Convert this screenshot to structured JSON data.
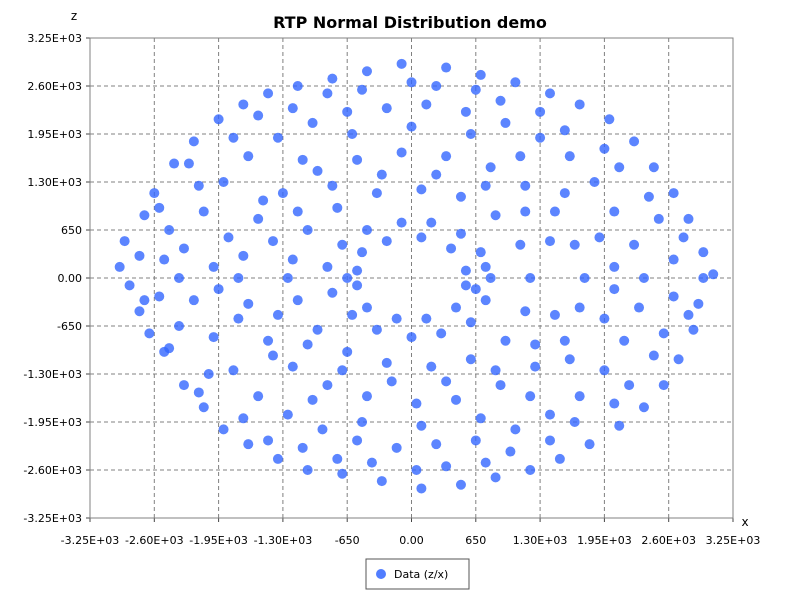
{
  "chart_data": {
    "type": "scatter",
    "title": "RTP Normal Distribution demo",
    "xlabel": "x",
    "ylabel": "z",
    "xlim": [
      -3250,
      3250
    ],
    "ylim": [
      -3250,
      3250
    ],
    "grid": true,
    "legend_position": "bottom-center",
    "x_ticks": [
      {
        "value": -3250,
        "label": "-3.25E+03"
      },
      {
        "value": -2600,
        "label": "-2.60E+03"
      },
      {
        "value": -1950,
        "label": "-1.95E+03"
      },
      {
        "value": -1300,
        "label": "-1.30E+03"
      },
      {
        "value": -650,
        "label": "-650"
      },
      {
        "value": 0,
        "label": "0.00"
      },
      {
        "value": 650,
        "label": "650"
      },
      {
        "value": 1300,
        "label": "1.30E+03"
      },
      {
        "value": 1950,
        "label": "1.95E+03"
      },
      {
        "value": 2600,
        "label": "2.60E+03"
      },
      {
        "value": 3250,
        "label": "3.25E+03"
      }
    ],
    "y_ticks": [
      {
        "value": 3250,
        "label": "3.25E+03"
      },
      {
        "value": 2600,
        "label": "2.60E+03"
      },
      {
        "value": 1950,
        "label": "1.95E+03"
      },
      {
        "value": 1300,
        "label": "1.30E+03"
      },
      {
        "value": 650,
        "label": "650"
      },
      {
        "value": 0,
        "label": "0.00"
      },
      {
        "value": -650,
        "label": "-650"
      },
      {
        "value": -1300,
        "label": "-1.30E+03"
      },
      {
        "value": -1950,
        "label": "-1.95E+03"
      },
      {
        "value": -2600,
        "label": "-2.60E+03"
      },
      {
        "value": -3250,
        "label": "-3.25E+03"
      }
    ],
    "series": [
      {
        "name": "Data (z/x)",
        "color": "#3366ff",
        "marker": "circle",
        "points": [
          {
            "x": -2900,
            "y": 500
          },
          {
            "x": -2950,
            "y": 150
          },
          {
            "x": -2850,
            "y": -100
          },
          {
            "x": -2750,
            "y": -450
          },
          {
            "x": -2700,
            "y": 850
          },
          {
            "x": -2600,
            "y": 1150
          },
          {
            "x": -2650,
            "y": -750
          },
          {
            "x": -2500,
            "y": -1000
          },
          {
            "x": -2400,
            "y": 1550
          },
          {
            "x": -2300,
            "y": -1450
          },
          {
            "x": -2200,
            "y": 1850
          },
          {
            "x": -2100,
            "y": -1750
          },
          {
            "x": -1950,
            "y": 2150
          },
          {
            "x": -1900,
            "y": -2050
          },
          {
            "x": -1700,
            "y": 2350
          },
          {
            "x": -1650,
            "y": -2250
          },
          {
            "x": -1450,
            "y": 2500
          },
          {
            "x": -1350,
            "y": -2450
          },
          {
            "x": -1150,
            "y": 2600
          },
          {
            "x": -1050,
            "y": -2600
          },
          {
            "x": -800,
            "y": 2700
          },
          {
            "x": -700,
            "y": -2650
          },
          {
            "x": -450,
            "y": 2800
          },
          {
            "x": -300,
            "y": -2750
          },
          {
            "x": -100,
            "y": 2900
          },
          {
            "x": 100,
            "y": -2850
          },
          {
            "x": 350,
            "y": 2850
          },
          {
            "x": 500,
            "y": -2800
          },
          {
            "x": 700,
            "y": 2750
          },
          {
            "x": 850,
            "y": -2700
          },
          {
            "x": 1050,
            "y": 2650
          },
          {
            "x": 1200,
            "y": -2600
          },
          {
            "x": 1400,
            "y": 2500
          },
          {
            "x": 1500,
            "y": -2450
          },
          {
            "x": 1700,
            "y": 2350
          },
          {
            "x": 1800,
            "y": -2250
          },
          {
            "x": 2000,
            "y": 2150
          },
          {
            "x": 2100,
            "y": -2000
          },
          {
            "x": 2250,
            "y": 1850
          },
          {
            "x": 2350,
            "y": -1750
          },
          {
            "x": 2450,
            "y": 1500
          },
          {
            "x": 2550,
            "y": -1450
          },
          {
            "x": 2650,
            "y": 1150
          },
          {
            "x": 2700,
            "y": -1100
          },
          {
            "x": 2800,
            "y": 800
          },
          {
            "x": 2850,
            "y": -700
          },
          {
            "x": 2950,
            "y": 350
          },
          {
            "x": 2950,
            "y": 0
          },
          {
            "x": 2900,
            "y": -350
          },
          {
            "x": 3050,
            "y": 50
          },
          {
            "x": -2300,
            "y": 400
          },
          {
            "x": -2200,
            "y": -300
          },
          {
            "x": -2100,
            "y": 900
          },
          {
            "x": -2000,
            "y": -800
          },
          {
            "x": -1900,
            "y": 1300
          },
          {
            "x": -1800,
            "y": -1250
          },
          {
            "x": -1650,
            "y": 1650
          },
          {
            "x": -1550,
            "y": -1600
          },
          {
            "x": -1350,
            "y": 1900
          },
          {
            "x": -1250,
            "y": -1850
          },
          {
            "x": -1000,
            "y": 2100
          },
          {
            "x": -900,
            "y": -2050
          },
          {
            "x": -650,
            "y": 2250
          },
          {
            "x": -550,
            "y": -2200
          },
          {
            "x": -250,
            "y": 2300
          },
          {
            "x": -150,
            "y": -2300
          },
          {
            "x": 150,
            "y": 2350
          },
          {
            "x": 250,
            "y": -2250
          },
          {
            "x": 550,
            "y": 2250
          },
          {
            "x": 650,
            "y": -2200
          },
          {
            "x": 950,
            "y": 2100
          },
          {
            "x": 1050,
            "y": -2050
          },
          {
            "x": 1300,
            "y": 1900
          },
          {
            "x": 1400,
            "y": -1850
          },
          {
            "x": 1600,
            "y": 1650
          },
          {
            "x": 1700,
            "y": -1600
          },
          {
            "x": 1850,
            "y": 1300
          },
          {
            "x": 1950,
            "y": -1250
          },
          {
            "x": 2050,
            "y": 900
          },
          {
            "x": 2150,
            "y": -850
          },
          {
            "x": 2250,
            "y": 450
          },
          {
            "x": 2300,
            "y": -400
          },
          {
            "x": 2350,
            "y": 0
          },
          {
            "x": -2350,
            "y": 0
          },
          {
            "x": -1700,
            "y": 300
          },
          {
            "x": -1650,
            "y": -350
          },
          {
            "x": -1550,
            "y": 800
          },
          {
            "x": -1450,
            "y": -850
          },
          {
            "x": -1300,
            "y": 1150
          },
          {
            "x": -1200,
            "y": -1200
          },
          {
            "x": -950,
            "y": 1450
          },
          {
            "x": -850,
            "y": -1450
          },
          {
            "x": -550,
            "y": 1600
          },
          {
            "x": -450,
            "y": -1600
          },
          {
            "x": -100,
            "y": 1700
          },
          {
            "x": 50,
            "y": -1700
          },
          {
            "x": 350,
            "y": 1650
          },
          {
            "x": 450,
            "y": -1650
          },
          {
            "x": 800,
            "y": 1500
          },
          {
            "x": 900,
            "y": -1450
          },
          {
            "x": 1150,
            "y": 1250
          },
          {
            "x": 1250,
            "y": -1200
          },
          {
            "x": 1450,
            "y": 900
          },
          {
            "x": 1550,
            "y": -850
          },
          {
            "x": 1650,
            "y": 450
          },
          {
            "x": 1700,
            "y": -400
          },
          {
            "x": 1750,
            "y": 0
          },
          {
            "x": -1750,
            "y": 0
          },
          {
            "x": -1200,
            "y": 250
          },
          {
            "x": -1150,
            "y": -300
          },
          {
            "x": -1050,
            "y": 650
          },
          {
            "x": -950,
            "y": -700
          },
          {
            "x": -750,
            "y": 950
          },
          {
            "x": -650,
            "y": -1000
          },
          {
            "x": -350,
            "y": 1150
          },
          {
            "x": -250,
            "y": -1150
          },
          {
            "x": 100,
            "y": 1200
          },
          {
            "x": 200,
            "y": -1200
          },
          {
            "x": 500,
            "y": 1100
          },
          {
            "x": 600,
            "y": -1100
          },
          {
            "x": 850,
            "y": 850
          },
          {
            "x": 950,
            "y": -850
          },
          {
            "x": 1100,
            "y": 450
          },
          {
            "x": 1150,
            "y": -450
          },
          {
            "x": 1200,
            "y": 0
          },
          {
            "x": -1250,
            "y": 0
          },
          {
            "x": -850,
            "y": 150
          },
          {
            "x": -800,
            "y": -200
          },
          {
            "x": -700,
            "y": 450
          },
          {
            "x": -600,
            "y": -500
          },
          {
            "x": -450,
            "y": 650
          },
          {
            "x": -350,
            "y": -700
          },
          {
            "x": -100,
            "y": 750
          },
          {
            "x": 0,
            "y": -800
          },
          {
            "x": 200,
            "y": 750
          },
          {
            "x": 300,
            "y": -750
          },
          {
            "x": 500,
            "y": 600
          },
          {
            "x": 600,
            "y": -600
          },
          {
            "x": 700,
            "y": 350
          },
          {
            "x": 750,
            "y": -300
          },
          {
            "x": 800,
            "y": 0
          },
          {
            "x": 750,
            "y": 150
          },
          {
            "x": 650,
            "y": -150
          },
          {
            "x": -650,
            "y": 0
          },
          {
            "x": -2500,
            "y": 250
          },
          {
            "x": -2550,
            "y": -250
          },
          {
            "x": -2450,
            "y": 650
          },
          {
            "x": -2350,
            "y": -650
          },
          {
            "x": -2150,
            "y": 1250
          },
          {
            "x": -2050,
            "y": -1300
          },
          {
            "x": -1800,
            "y": 1900
          },
          {
            "x": -1700,
            "y": -1900
          },
          {
            "x": -1200,
            "y": 2300
          },
          {
            "x": -1100,
            "y": -2300
          },
          {
            "x": -500,
            "y": 2550
          },
          {
            "x": -400,
            "y": -2500
          },
          {
            "x": 250,
            "y": 2600
          },
          {
            "x": 350,
            "y": -2550
          },
          {
            "x": 900,
            "y": 2400
          },
          {
            "x": 1000,
            "y": -2350
          },
          {
            "x": 1550,
            "y": 2000
          },
          {
            "x": 1650,
            "y": -1950
          },
          {
            "x": 2100,
            "y": 1500
          },
          {
            "x": 2200,
            "y": -1450
          },
          {
            "x": 2500,
            "y": 800
          },
          {
            "x": 2550,
            "y": -750
          },
          {
            "x": 2650,
            "y": 250
          },
          {
            "x": 2650,
            "y": -250
          },
          {
            "x": -2000,
            "y": 150
          },
          {
            "x": -1950,
            "y": -150
          },
          {
            "x": -1850,
            "y": 550
          },
          {
            "x": -1750,
            "y": -550
          },
          {
            "x": -1500,
            "y": 1050
          },
          {
            "x": -1400,
            "y": -1050
          },
          {
            "x": -1100,
            "y": 1600
          },
          {
            "x": -1000,
            "y": -1650
          },
          {
            "x": -600,
            "y": 1950
          },
          {
            "x": -500,
            "y": -1950
          },
          {
            "x": 0,
            "y": 2050
          },
          {
            "x": 100,
            "y": -2000
          },
          {
            "x": 600,
            "y": 1950
          },
          {
            "x": 700,
            "y": -1900
          },
          {
            "x": 1100,
            "y": 1650
          },
          {
            "x": 1200,
            "y": -1600
          },
          {
            "x": 1550,
            "y": 1150
          },
          {
            "x": 1600,
            "y": -1100
          },
          {
            "x": 1900,
            "y": 550
          },
          {
            "x": 1950,
            "y": -550
          },
          {
            "x": 2050,
            "y": 150
          },
          {
            "x": 2050,
            "y": -150
          },
          {
            "x": -1400,
            "y": 500
          },
          {
            "x": -1350,
            "y": -500
          },
          {
            "x": -1150,
            "y": 900
          },
          {
            "x": -1050,
            "y": -900
          },
          {
            "x": -800,
            "y": 1250
          },
          {
            "x": -700,
            "y": -1250
          },
          {
            "x": -300,
            "y": 1400
          },
          {
            "x": -200,
            "y": -1400
          },
          {
            "x": 250,
            "y": 1400
          },
          {
            "x": 350,
            "y": -1400
          },
          {
            "x": 750,
            "y": 1250
          },
          {
            "x": 850,
            "y": -1250
          },
          {
            "x": 1150,
            "y": 900
          },
          {
            "x": 1250,
            "y": -900
          },
          {
            "x": 1400,
            "y": 500
          },
          {
            "x": 1450,
            "y": -500
          },
          {
            "x": -500,
            "y": 350
          },
          {
            "x": -450,
            "y": -400
          },
          {
            "x": -250,
            "y": 500
          },
          {
            "x": -150,
            "y": -550
          },
          {
            "x": 100,
            "y": 550
          },
          {
            "x": 150,
            "y": -550
          },
          {
            "x": 400,
            "y": 400
          },
          {
            "x": 450,
            "y": -400
          },
          {
            "x": 550,
            "y": 100
          },
          {
            "x": 550,
            "y": -100
          },
          {
            "x": -550,
            "y": 100
          },
          {
            "x": -550,
            "y": -100
          },
          {
            "x": -2750,
            "y": 300
          },
          {
            "x": -2700,
            "y": -300
          },
          {
            "x": -2550,
            "y": 950
          },
          {
            "x": -2450,
            "y": -950
          },
          {
            "x": -2250,
            "y": 1550
          },
          {
            "x": -2150,
            "y": -1550
          },
          {
            "x": -1550,
            "y": 2200
          },
          {
            "x": -1450,
            "y": -2200
          },
          {
            "x": -850,
            "y": 2500
          },
          {
            "x": -750,
            "y": -2450
          },
          {
            "x": 0,
            "y": 2650
          },
          {
            "x": 50,
            "y": -2600
          },
          {
            "x": 650,
            "y": 2550
          },
          {
            "x": 750,
            "y": -2500
          },
          {
            "x": 1300,
            "y": 2250
          },
          {
            "x": 1400,
            "y": -2200
          },
          {
            "x": 1950,
            "y": 1750
          },
          {
            "x": 2050,
            "y": -1700
          },
          {
            "x": 2400,
            "y": 1100
          },
          {
            "x": 2450,
            "y": -1050
          },
          {
            "x": 2750,
            "y": 550
          },
          {
            "x": 2800,
            "y": -500
          }
        ]
      }
    ]
  }
}
